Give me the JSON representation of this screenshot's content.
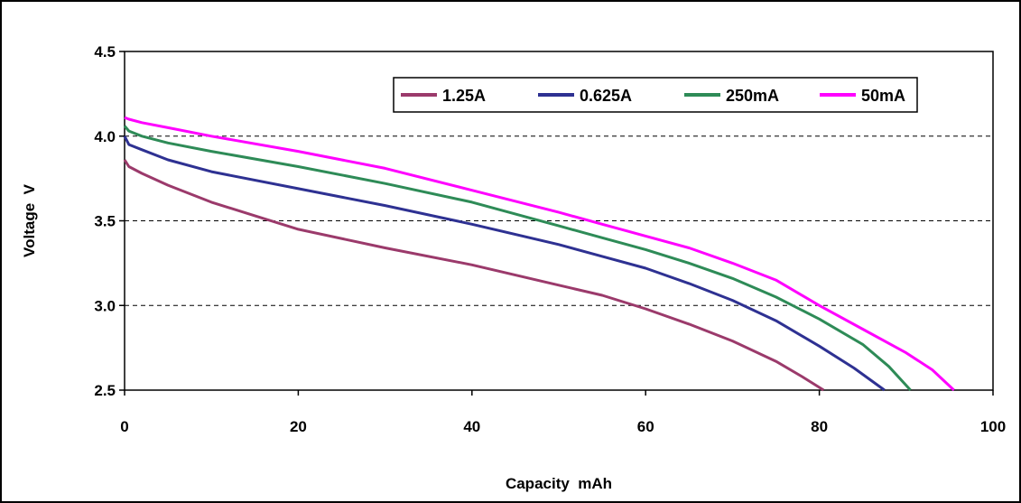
{
  "chart_data": {
    "type": "line",
    "title": "",
    "xlabel": "Capacity  mAh",
    "ylabel": "Voltage  V",
    "xlim": [
      0,
      100
    ],
    "ylim": [
      2.5,
      4.5
    ],
    "xticks": [
      0,
      20,
      40,
      60,
      80,
      100
    ],
    "yticks": [
      2.5,
      3.0,
      3.5,
      4.0,
      4.5
    ],
    "xtick_labels": [
      "0",
      "20",
      "40",
      "60",
      "80",
      "100"
    ],
    "ytick_labels": [
      "2.5",
      "3.0",
      "3.5",
      "4.0",
      "4.5"
    ],
    "grid": "horizontal dashed",
    "legend_position": "top-right",
    "series": [
      {
        "name": "1.25A",
        "color": "#9B3A6B",
        "x": [
          0,
          0.5,
          2,
          5,
          10,
          15,
          20,
          30,
          40,
          50,
          55,
          60,
          65,
          70,
          75,
          78,
          80.5
        ],
        "y": [
          3.86,
          3.82,
          3.78,
          3.71,
          3.61,
          3.53,
          3.45,
          3.34,
          3.24,
          3.12,
          3.06,
          2.98,
          2.89,
          2.79,
          2.67,
          2.58,
          2.5
        ]
      },
      {
        "name": "0.625A",
        "color": "#2E3192",
        "x": [
          0,
          0.5,
          2,
          5,
          10,
          20,
          30,
          40,
          50,
          55,
          60,
          65,
          70,
          75,
          80,
          84,
          87.5
        ],
        "y": [
          4.0,
          3.95,
          3.92,
          3.86,
          3.79,
          3.69,
          3.59,
          3.48,
          3.36,
          3.29,
          3.22,
          3.13,
          3.03,
          2.91,
          2.76,
          2.63,
          2.5
        ]
      },
      {
        "name": "250mA",
        "color": "#2E8B57",
        "x": [
          0,
          0.5,
          2,
          5,
          10,
          20,
          30,
          40,
          50,
          55,
          60,
          65,
          70,
          75,
          80,
          85,
          88,
          90.5
        ],
        "y": [
          4.06,
          4.03,
          4.0,
          3.96,
          3.91,
          3.82,
          3.72,
          3.61,
          3.47,
          3.4,
          3.33,
          3.25,
          3.16,
          3.05,
          2.92,
          2.77,
          2.64,
          2.5
        ]
      },
      {
        "name": "50mA",
        "color": "#FF00FF",
        "x": [
          0,
          0.5,
          2,
          5,
          10,
          20,
          30,
          40,
          50,
          55,
          60,
          65,
          70,
          75,
          80,
          85,
          90,
          93,
          95.5
        ],
        "y": [
          4.11,
          4.1,
          4.08,
          4.05,
          4.0,
          3.91,
          3.81,
          3.68,
          3.55,
          3.48,
          3.41,
          3.34,
          3.25,
          3.15,
          3.0,
          2.86,
          2.72,
          2.62,
          2.5
        ]
      }
    ]
  }
}
